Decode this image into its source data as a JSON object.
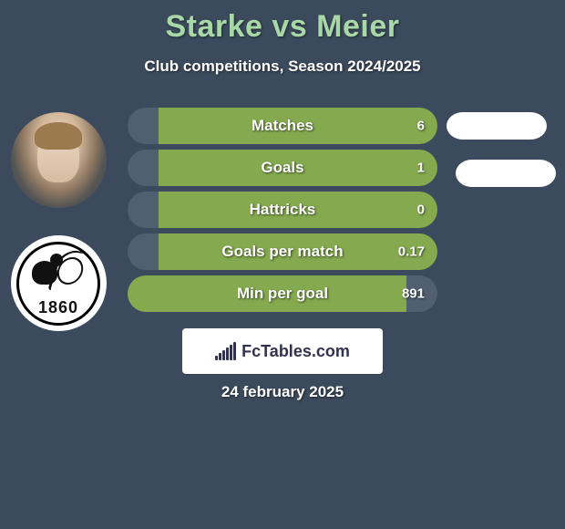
{
  "title": "Starke vs Meier",
  "subtitle": "Club competitions, Season 2024/2025",
  "club_year": "1860",
  "date_text": "24 february 2025",
  "footer_brand": "FcTables.com",
  "colors": {
    "background": "#3b4a5c",
    "title": "#a8d8a8",
    "bar_green": "#84a94f",
    "bar_dark": "#516070",
    "white": "#ffffff",
    "text_white": "#ffffff"
  },
  "rows": [
    {
      "label": "Matches",
      "value": "6",
      "left_color_key": "bar_dark",
      "right_color_key": "bar_green",
      "left_pct": 10,
      "right_pct": 90
    },
    {
      "label": "Goals",
      "value": "1",
      "left_color_key": "bar_dark",
      "right_color_key": "bar_green",
      "left_pct": 10,
      "right_pct": 90
    },
    {
      "label": "Hattricks",
      "value": "0",
      "left_color_key": "bar_dark",
      "right_color_key": "bar_green",
      "left_pct": 10,
      "right_pct": 90
    },
    {
      "label": "Goals per match",
      "value": "0.17",
      "left_color_key": "bar_dark",
      "right_color_key": "bar_green",
      "left_pct": 10,
      "right_pct": 90
    },
    {
      "label": "Min per goal",
      "value": "891",
      "left_color_key": "bar_green",
      "right_color_key": "bar_dark",
      "left_pct": 90,
      "right_pct": 10
    }
  ],
  "pills": [
    {
      "present": true
    },
    {
      "present": true
    }
  ],
  "footer_logo_bars_heights": [
    5,
    8,
    11,
    14,
    17,
    20
  ],
  "row_dimensions": {
    "height": 40,
    "gap": 6,
    "radius": 20
  },
  "typography": {
    "title_fontsize": 34,
    "subtitle_fontsize": 17,
    "row_label_fontsize": 17,
    "row_value_fontsize": 15,
    "date_fontsize": 17,
    "brand_fontsize": 18
  }
}
